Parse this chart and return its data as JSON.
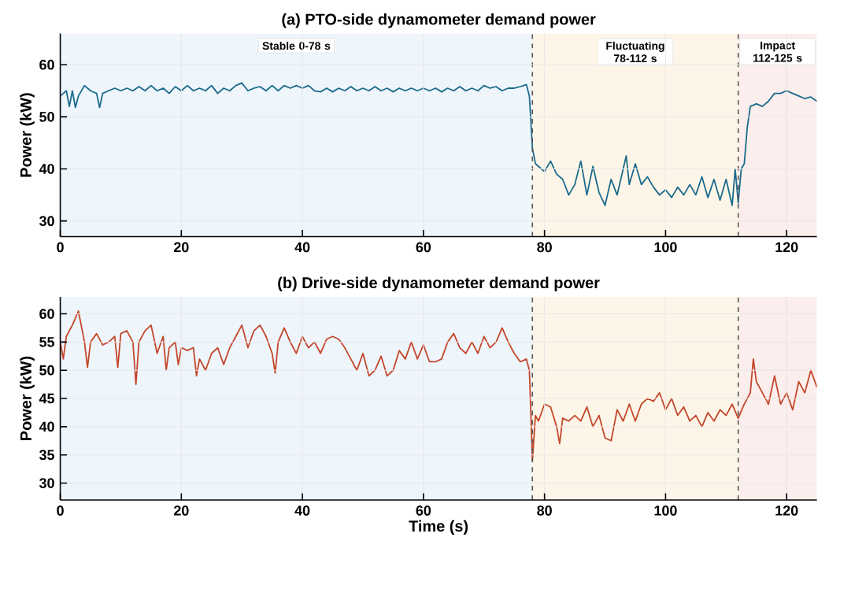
{
  "chart_data": [
    {
      "type": "line",
      "title": "(a) PTO-side dynamometer demand power",
      "ylabel": "Power (kW)",
      "xlim": [
        0,
        125
      ],
      "ylim": [
        27,
        66
      ],
      "xticks": [
        0,
        20,
        40,
        60,
        80,
        100,
        120
      ],
      "yticks": [
        30,
        40,
        50,
        60
      ],
      "grid": true,
      "bands": [
        {
          "axis": "x",
          "from": 0,
          "to": 78,
          "label": "Stable 0-78 s",
          "color": "#eef5fb"
        },
        {
          "axis": "x",
          "from": 78,
          "to": 112,
          "label": "Fluctuating 78-112 s",
          "color": "#fdf6e8"
        },
        {
          "axis": "x",
          "from": 112,
          "to": 125,
          "label": "Impact 112-125 s",
          "color": "#fbeeec"
        }
      ],
      "ref_lines": [
        {
          "axis": "x",
          "value": 78,
          "color": "#555555",
          "line_style": "dashed"
        },
        {
          "axis": "x",
          "value": 112,
          "color": "#555555",
          "line_style": "dashed"
        }
      ],
      "series": [
        {
          "color": "#1a6a8c",
          "x": [
            0,
            0.5,
            1,
            1.5,
            2,
            2.5,
            3,
            4,
            5,
            6,
            6.5,
            7,
            8,
            9,
            10,
            11,
            12,
            13,
            14,
            15,
            16,
            17,
            18,
            19,
            20,
            21,
            22,
            23,
            24,
            25,
            26,
            27,
            28,
            29,
            30,
            31,
            32,
            33,
            34,
            35,
            36,
            37,
            38,
            39,
            40,
            41,
            42,
            43,
            44,
            45,
            46,
            47,
            48,
            49,
            50,
            51,
            52,
            53,
            54,
            55,
            56,
            57,
            58,
            59,
            60,
            61,
            62,
            63,
            64,
            65,
            66,
            67,
            68,
            69,
            70,
            71,
            72,
            73,
            74,
            75,
            76,
            77,
            77.5,
            78,
            78.5,
            79,
            80,
            81,
            82,
            83,
            84,
            85,
            86,
            87,
            88,
            89,
            90,
            91,
            92,
            93,
            93.5,
            94,
            95,
            96,
            97,
            98,
            99,
            100,
            101,
            102,
            103,
            104,
            105,
            106,
            107,
            108,
            109,
            110,
            111,
            111.5,
            112,
            112.5,
            113,
            113.5,
            114,
            115,
            116,
            117,
            118,
            119,
            120,
            121,
            122,
            123,
            124,
            125
          ],
          "values": [
            54,
            54.5,
            55,
            52,
            55,
            51.8,
            54,
            56,
            55,
            54.5,
            51.8,
            54.5,
            55,
            55.5,
            55,
            55.5,
            55,
            55.8,
            55,
            56,
            55,
            55.5,
            54.5,
            55.8,
            55,
            56,
            55,
            55.5,
            55,
            56,
            54.5,
            55.5,
            55,
            56,
            56.5,
            55,
            55.5,
            55.8,
            55,
            56,
            55,
            56,
            55.5,
            56,
            55.5,
            56,
            55,
            54.8,
            55.5,
            54.8,
            55.5,
            55,
            55.8,
            55,
            55.5,
            55,
            55.8,
            55,
            55.5,
            54.8,
            55.5,
            55,
            55.5,
            55,
            55.5,
            55,
            55.5,
            54.8,
            55.5,
            55,
            55.8,
            55,
            55.5,
            55,
            56,
            55.5,
            55.8,
            55,
            55.5,
            55.5,
            55.8,
            56.2,
            54,
            44,
            41,
            40.5,
            39.5,
            41.5,
            39,
            38,
            35,
            37,
            41.5,
            35,
            40.5,
            35.5,
            33,
            38,
            35,
            40,
            42.5,
            37,
            41,
            37,
            38.5,
            36.5,
            35,
            36,
            34.5,
            36.5,
            35,
            37,
            35,
            38.5,
            34.5,
            38,
            34,
            38,
            33,
            40,
            33.5,
            40,
            41,
            48,
            52,
            52.5,
            52,
            53,
            54.5,
            54.5,
            55,
            54.5,
            54,
            53.5,
            53.8,
            53
          ]
        }
      ]
    },
    {
      "type": "line",
      "title": "(b) Drive-side dynamometer demand power",
      "xlabel": "Time (s)",
      "ylabel": "Power (kW)",
      "xlim": [
        0,
        125
      ],
      "ylim": [
        27,
        63
      ],
      "xticks": [
        0,
        20,
        40,
        60,
        80,
        100,
        120
      ],
      "yticks": [
        30,
        35,
        40,
        45,
        50,
        55,
        60
      ],
      "grid": true,
      "bands": [
        {
          "axis": "x",
          "from": 0,
          "to": 78,
          "color": "#eef5fb"
        },
        {
          "axis": "x",
          "from": 78,
          "to": 112,
          "color": "#fdf6e8"
        },
        {
          "axis": "x",
          "from": 112,
          "to": 125,
          "color": "#fbeeec"
        }
      ],
      "ref_lines": [
        {
          "axis": "x",
          "value": 78,
          "color": "#555555",
          "line_style": "dashed"
        },
        {
          "axis": "x",
          "value": 112,
          "color": "#555555",
          "line_style": "dashed"
        }
      ],
      "series": [
        {
          "color": "#c4462a",
          "x": [
            0,
            0.5,
            1,
            2,
            3,
            4,
            4.5,
            5,
            6,
            7,
            8,
            9,
            9.5,
            10,
            11,
            12,
            12.5,
            13,
            14,
            15,
            16,
            17,
            17.5,
            18,
            19,
            19.5,
            20,
            21,
            22,
            22.5,
            23,
            24,
            25,
            26,
            27,
            28,
            29,
            30,
            31,
            32,
            33,
            34,
            35,
            35.5,
            36,
            37,
            38,
            39,
            40,
            41,
            42,
            43,
            44,
            45,
            46,
            47,
            48,
            49,
            50,
            51,
            52,
            53,
            54,
            55,
            56,
            57,
            58,
            59,
            60,
            61,
            62,
            63,
            64,
            65,
            66,
            67,
            68,
            69,
            70,
            71,
            72,
            73,
            74,
            75,
            76,
            77,
            77.5,
            78,
            78.5,
            79,
            80,
            81,
            82,
            82.5,
            83,
            84,
            85,
            86,
            87,
            88,
            89,
            90,
            91,
            92,
            93,
            94,
            95,
            96,
            97,
            98,
            99,
            100,
            101,
            102,
            103,
            104,
            105,
            106,
            107,
            108,
            109,
            110,
            111,
            112,
            113,
            114,
            114.5,
            115,
            116,
            117,
            118,
            119,
            120,
            121,
            122,
            123,
            124,
            125
          ],
          "values": [
            55,
            52,
            56,
            58,
            60.5,
            55,
            50.5,
            55,
            56.5,
            54.5,
            55,
            56,
            50.5,
            56.5,
            57,
            55,
            47.5,
            55,
            57,
            58,
            53,
            56,
            50,
            54,
            55,
            51,
            54,
            53.5,
            54,
            49,
            52,
            50,
            53,
            54,
            51,
            54,
            56,
            58,
            54,
            57,
            58,
            56,
            53,
            49.5,
            55,
            57.5,
            55,
            53,
            56,
            54,
            55,
            53,
            55.5,
            56,
            55.5,
            54,
            52,
            50,
            53,
            49,
            50,
            52.5,
            49,
            50,
            53.5,
            52,
            55,
            52,
            54.5,
            51.5,
            51.5,
            52,
            55,
            56.5,
            54,
            53,
            55,
            53,
            56,
            54,
            55,
            57.5,
            55,
            53,
            51.5,
            52,
            50,
            34,
            42,
            41,
            44,
            43.5,
            40,
            37,
            41.5,
            41,
            42,
            41,
            43.5,
            40,
            42,
            38,
            37.5,
            43,
            41,
            44,
            41,
            44,
            45,
            44.5,
            46,
            43,
            45,
            42,
            43.5,
            41,
            42,
            40,
            42.5,
            41,
            43,
            42,
            44,
            41.5,
            44,
            46,
            52,
            48,
            46,
            44,
            49,
            44,
            46,
            43,
            48,
            46,
            50,
            47
          ]
        }
      ]
    }
  ]
}
